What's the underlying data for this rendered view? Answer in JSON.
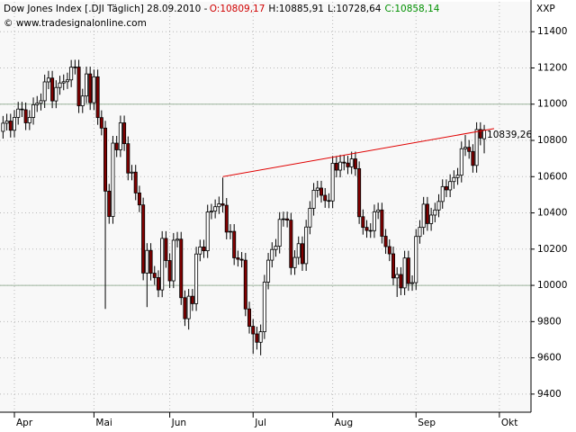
{
  "chart_data": {
    "type": "candlestick",
    "title": "Dow Jones Index [.DJI  Täglich] 28.09.2010 -",
    "ohlc_labels": [
      {
        "text": "O:10809,17",
        "color": "#d00000"
      },
      {
        "text": "H:10885,91",
        "color": "#000000"
      },
      {
        "text": "L:10728,64",
        "color": "#000000"
      },
      {
        "text": "C:10858,14",
        "color": "#009000"
      }
    ],
    "subtitle": "© www.tradesignalonline.com",
    "y_axis_label": "XXP",
    "next_month_label": "Okt",
    "categories": [
      null,
      null,
      null,
      "Apr",
      null,
      null,
      null,
      null,
      null,
      null,
      null,
      null,
      null,
      null,
      null,
      null,
      null,
      null,
      null,
      null,
      null,
      null,
      null,
      null,
      "Mai",
      null,
      null,
      null,
      null,
      null,
      null,
      null,
      null,
      null,
      null,
      null,
      null,
      null,
      null,
      null,
      null,
      null,
      null,
      null,
      "Jun",
      null,
      null,
      null,
      null,
      null,
      null,
      null,
      null,
      null,
      null,
      null,
      null,
      null,
      null,
      null,
      null,
      null,
      null,
      null,
      null,
      null,
      "Jul",
      null,
      null,
      null,
      null,
      null,
      null,
      null,
      null,
      null,
      null,
      null,
      null,
      null,
      null,
      null,
      null,
      null,
      null,
      null,
      null,
      "Aug",
      null,
      null,
      null,
      null,
      null,
      null,
      null,
      null,
      null,
      null,
      null,
      null,
      null,
      null,
      null,
      null,
      null,
      null,
      null,
      null,
      null,
      "Sep",
      null,
      null,
      null,
      null,
      null,
      null,
      null,
      null,
      null,
      null,
      null,
      null,
      null,
      null,
      null,
      null,
      null,
      null
    ],
    "open": [
      10850,
      10895,
      10907,
      10856,
      10927,
      10973,
      10969,
      10897,
      10927,
      10997,
      11005,
      11019,
      11123,
      11144,
      11018,
      11092,
      11117,
      11124,
      11134,
      11204,
      11205,
      10991,
      11045,
      11167,
      11008,
      11151,
      10926,
      10868,
      10520,
      10380,
      10785,
      10748,
      10897,
      10782,
      10620,
      10625,
      10510,
      10444,
      10068,
      10193,
      10067,
      10043,
      9975,
      10259,
      10137,
      10025,
      10249,
      10255,
      9932,
      9816,
      9940,
      9899,
      10173,
      10212,
      10191,
      10405,
      10410,
      10434,
      10450,
      10442,
      10294,
      10298,
      10152,
      10144,
      10139,
      9870,
      9774,
      9732,
      9686,
      9744,
      10018,
      10139,
      10198,
      10216,
      10364,
      10367,
      10360,
      10098,
      10154,
      10230,
      10120,
      10322,
      10425,
      10525,
      10537,
      10497,
      10468,
      10466,
      10674,
      10636,
      10680,
      10675,
      10654,
      10698,
      10644,
      10379,
      10320,
      10303,
      10302,
      10406,
      10416,
      10271,
      10214,
      10174,
      10041,
      10060,
      9986,
      10151,
      10010,
      10015,
      10270,
      10320,
      10448,
      10341,
      10388,
      10416,
      10463,
      10545,
      10527,
      10573,
      10595,
      10608,
      10754,
      10762,
      10739,
      10662,
      10860,
      10809.17
    ],
    "high": [
      10935,
      10947,
      10947,
      10967,
      11013,
      11013,
      11009,
      10967,
      11037,
      11045,
      11059,
      11163,
      11184,
      11184,
      11132,
      11157,
      11164,
      11174,
      11244,
      11245,
      11245,
      11085,
      11207,
      11207,
      11191,
      11191,
      10966,
      10908,
      10560,
      10825,
      10825,
      10937,
      10937,
      10822,
      10665,
      10665,
      10550,
      10484,
      10233,
      10233,
      10107,
      10083,
      10299,
      10299,
      10177,
      10289,
      10295,
      10295,
      9972,
      9980,
      9980,
      10213,
      10252,
      10252,
      10445,
      10450,
      10474,
      10490,
      10595,
      10482,
      10338,
      10338,
      10192,
      10184,
      10179,
      9910,
      9814,
      9772,
      9784,
      10058,
      10179,
      10238,
      10256,
      10404,
      10407,
      10407,
      10400,
      10194,
      10270,
      10270,
      10362,
      10465,
      10565,
      10577,
      10577,
      10537,
      10508,
      10714,
      10714,
      10720,
      10720,
      10715,
      10738,
      10738,
      10684,
      10419,
      10360,
      10343,
      10446,
      10456,
      10456,
      10311,
      10254,
      10214,
      10100,
      10100,
      10191,
      10191,
      10055,
      10310,
      10360,
      10488,
      10488,
      10428,
      10456,
      10503,
      10585,
      10585,
      10613,
      10635,
      10648,
      10794,
      10830,
      10802,
      10779,
      10900,
      10900,
      10885.91
    ],
    "low": [
      10810,
      10855,
      10816,
      10816,
      10887,
      10929,
      10857,
      10857,
      10887,
      10957,
      10965,
      10979,
      11083,
      10978,
      10978,
      11052,
      11077,
      11084,
      11094,
      11164,
      10951,
      10951,
      11005,
      10968,
      10968,
      10886,
      10828,
      9870,
      10340,
      10340,
      10708,
      10708,
      10742,
      10580,
      10580,
      10470,
      10404,
      10028,
      9880,
      10027,
      10003,
      9935,
      9935,
      10097,
      9985,
      9985,
      10209,
      9892,
      9776,
      9756,
      9859,
      9859,
      10133,
      10151,
      10151,
      10365,
      10370,
      10394,
      10402,
      10254,
      10254,
      10112,
      10104,
      10099,
      9830,
      9734,
      9622,
      9646,
      9614,
      9704,
      9978,
      10099,
      10158,
      10176,
      10324,
      10320,
      10058,
      10058,
      10114,
      10080,
      10080,
      10282,
      10385,
      10485,
      10457,
      10428,
      10426,
      10426,
      10596,
      10596,
      10635,
      10614,
      10614,
      10604,
      10339,
      10280,
      10263,
      10262,
      10262,
      10366,
      10231,
      10174,
      10134,
      10001,
      9936,
      9946,
      9946,
      9970,
      9970,
      9975,
      10230,
      10280,
      10301,
      10301,
      10348,
      10376,
      10423,
      10487,
      10487,
      10533,
      10555,
      10568,
      10714,
      10699,
      10622,
      10622,
      10773,
      10728.64
    ],
    "close": [
      10895,
      10907,
      10856,
      10927,
      10973,
      10969,
      10897,
      10927,
      10997,
      11005,
      11019,
      11123,
      11144,
      11018,
      11092,
      11117,
      11124,
      11134,
      11204,
      11205,
      10991,
      11045,
      11167,
      11008,
      11151,
      10926,
      10868,
      10520,
      10380,
      10785,
      10748,
      10897,
      10782,
      10620,
      10625,
      10510,
      10444,
      10068,
      10193,
      10067,
      10043,
      9975,
      10259,
      10137,
      10025,
      10249,
      10255,
      9932,
      9816,
      9940,
      9899,
      10173,
      10212,
      10191,
      10405,
      10410,
      10434,
      10450,
      10442,
      10294,
      10298,
      10152,
      10144,
      10139,
      9870,
      9774,
      9732,
      9686,
      9744,
      10018,
      10139,
      10198,
      10216,
      10364,
      10367,
      10360,
      10098,
      10154,
      10230,
      10120,
      10322,
      10425,
      10525,
      10537,
      10497,
      10468,
      10466,
      10674,
      10636,
      10680,
      10675,
      10654,
      10698,
      10644,
      10379,
      10320,
      10303,
      10302,
      10406,
      10416,
      10271,
      10214,
      10174,
      10041,
      10060,
      9986,
      10151,
      10010,
      10015,
      10270,
      10320,
      10448,
      10341,
      10388,
      10416,
      10463,
      10545,
      10527,
      10573,
      10595,
      10608,
      10754,
      10762,
      10739,
      10662,
      10860,
      10813,
      10858.14
    ],
    "up_color": "#ffffff",
    "down_color": "#800000",
    "ylim": [
      9300,
      11565
    ],
    "yticks": [
      9400,
      9600,
      9800,
      10000,
      10200,
      10400,
      10600,
      10800,
      11000,
      11200,
      11400
    ],
    "reference_lines": [
      11000,
      10000
    ],
    "trendline": {
      "values": [
        10600,
        10865
      ],
      "color": "#e00000",
      "label": {
        "value": 10839.26,
        "label": "10839,26"
      }
    },
    "grid": true
  }
}
